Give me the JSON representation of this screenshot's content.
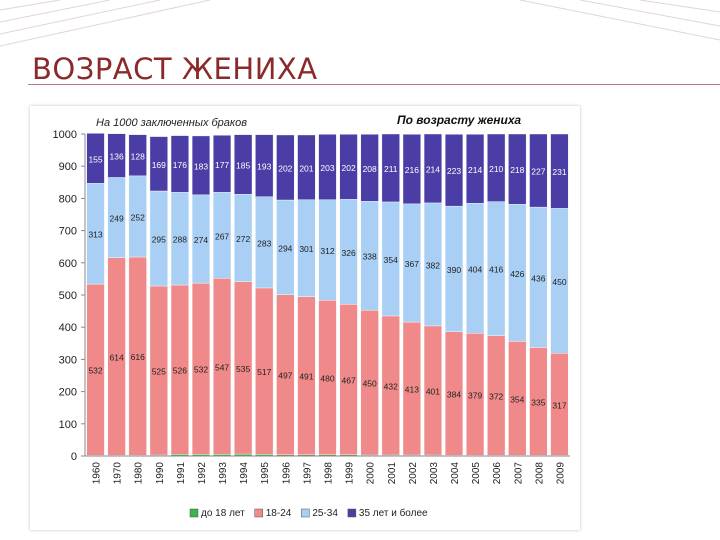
{
  "slide": {
    "title": "ВОЗРАСТ ЖЕНИХА"
  },
  "chart_data": {
    "type": "bar",
    "stacked": true,
    "title": "По возрасту жениха",
    "subtitle": "На 1000 заключенных браков",
    "ylim": [
      0,
      1000
    ],
    "yticks": [
      "0",
      "100",
      "200",
      "300",
      "400",
      "500",
      "600",
      "700",
      "800",
      "900",
      "1000"
    ],
    "grid": false,
    "legend_position": "bottom",
    "categories": [
      "1960",
      "1970",
      "1980",
      "1990",
      "1991",
      "1992",
      "1993",
      "1994",
      "1995",
      "1996",
      "1997",
      "1998",
      "1999",
      "2000",
      "2001",
      "2002",
      "2003",
      "2004",
      "2005",
      "2006",
      "2007",
      "2008",
      "2009"
    ],
    "series": [
      {
        "name": "до 18 лет",
        "color": "#3cb44b",
        "values": [
          2,
          2,
          2,
          3,
          5,
          5,
          5,
          6,
          5,
          4,
          4,
          4,
          4,
          3,
          3,
          3,
          3,
          2,
          2,
          2,
          2,
          2,
          2
        ]
      },
      {
        "name": "18-24",
        "color": "#f08a8a",
        "values": [
          532,
          614,
          616,
          525,
          526,
          532,
          547,
          535,
          517,
          497,
          491,
          480,
          467,
          450,
          432,
          413,
          401,
          384,
          379,
          372,
          354,
          335,
          317
        ]
      },
      {
        "name": "25-34",
        "color": "#a9cff5",
        "values": [
          313,
          249,
          252,
          295,
          288,
          274,
          267,
          272,
          283,
          294,
          301,
          312,
          326,
          338,
          354,
          367,
          382,
          390,
          404,
          416,
          426,
          436,
          450
        ]
      },
      {
        "name": "35 лет и более",
        "color": "#4a3ea6",
        "values": [
          155,
          136,
          128,
          169,
          176,
          183,
          177,
          185,
          193,
          202,
          201,
          203,
          202,
          208,
          211,
          216,
          214,
          223,
          214,
          210,
          218,
          227,
          231
        ]
      }
    ],
    "data_labels": {
      "18-24": [
        "532",
        "614",
        "616",
        "525",
        "526",
        "532",
        "547",
        "535",
        "517",
        "497",
        "491",
        "480",
        "467",
        "450",
        "432",
        "413",
        "401",
        "384",
        "379",
        "372",
        "354",
        "335",
        "317"
      ],
      "25-34": [
        "313",
        "249",
        "252",
        "295",
        "288",
        "274",
        "267",
        "272",
        "283",
        "294",
        "301",
        "312",
        "326",
        "338",
        "354",
        "367",
        "382",
        "390",
        "404",
        "416",
        "426",
        "436",
        "450"
      ],
      "35 лет и более": [
        "155",
        "136",
        "128",
        "169",
        "176",
        "183",
        "177",
        "185",
        "193",
        "202",
        "201",
        "203",
        "202",
        "208",
        "211",
        "216",
        "214",
        "223",
        "214",
        "210",
        "218",
        "227",
        "231"
      ]
    }
  }
}
